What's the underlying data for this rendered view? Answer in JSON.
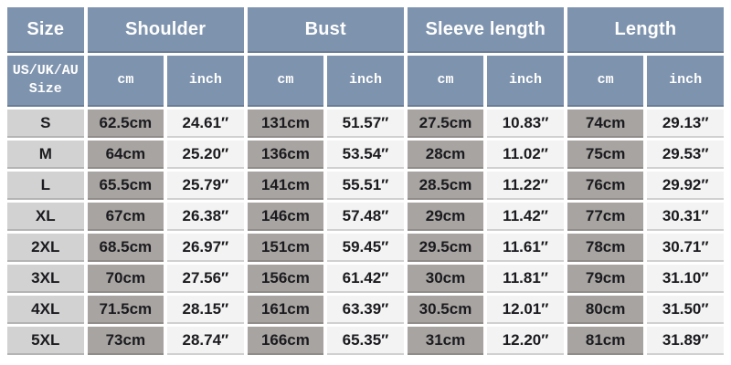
{
  "colors": {
    "header_bg": "#7e93ae",
    "header_text": "#ffffff",
    "size_column_bg": "#d2d2d2",
    "cm_column_bg": "#a8a4a1",
    "inch_column_bg": "#f3f3f3",
    "data_text": "#1b1b1f",
    "grid_gap": "#ffffff"
  },
  "chart_data": {
    "type": "table",
    "title": "",
    "header_groups": [
      {
        "label": "Size",
        "span": 1
      },
      {
        "label": "Shoulder",
        "span": 2
      },
      {
        "label": "Bust",
        "span": 2
      },
      {
        "label": "Sleeve length",
        "span": 2
      },
      {
        "label": "Length",
        "span": 2
      }
    ],
    "subheader": {
      "size_line1": "US/UK/AU",
      "size_line2": "Size",
      "cm_label": "cm",
      "inch_label": "inch"
    },
    "rows": [
      {
        "size": "S",
        "shoulder_cm": "62.5cm",
        "shoulder_in": "24.61″",
        "bust_cm": "131cm",
        "bust_in": "51.57″",
        "sleeve_cm": "27.5cm",
        "sleeve_in": "10.83″",
        "length_cm": "74cm",
        "length_in": "29.13″"
      },
      {
        "size": "M",
        "shoulder_cm": "64cm",
        "shoulder_in": "25.20″",
        "bust_cm": "136cm",
        "bust_in": "53.54″",
        "sleeve_cm": "28cm",
        "sleeve_in": "11.02″",
        "length_cm": "75cm",
        "length_in": "29.53″"
      },
      {
        "size": "L",
        "shoulder_cm": "65.5cm",
        "shoulder_in": "25.79″",
        "bust_cm": "141cm",
        "bust_in": "55.51″",
        "sleeve_cm": "28.5cm",
        "sleeve_in": "11.22″",
        "length_cm": "76cm",
        "length_in": "29.92″"
      },
      {
        "size": "XL",
        "shoulder_cm": "67cm",
        "shoulder_in": "26.38″",
        "bust_cm": "146cm",
        "bust_in": "57.48″",
        "sleeve_cm": "29cm",
        "sleeve_in": "11.42″",
        "length_cm": "77cm",
        "length_in": "30.31″"
      },
      {
        "size": "2XL",
        "shoulder_cm": "68.5cm",
        "shoulder_in": "26.97″",
        "bust_cm": "151cm",
        "bust_in": "59.45″",
        "sleeve_cm": "29.5cm",
        "sleeve_in": "11.61″",
        "length_cm": "78cm",
        "length_in": "30.71″"
      },
      {
        "size": "3XL",
        "shoulder_cm": "70cm",
        "shoulder_in": "27.56″",
        "bust_cm": "156cm",
        "bust_in": "61.42″",
        "sleeve_cm": "30cm",
        "sleeve_in": "11.81″",
        "length_cm": "79cm",
        "length_in": "31.10″"
      },
      {
        "size": "4XL",
        "shoulder_cm": "71.5cm",
        "shoulder_in": "28.15″",
        "bust_cm": "161cm",
        "bust_in": "63.39″",
        "sleeve_cm": "30.5cm",
        "sleeve_in": "12.01″",
        "length_cm": "80cm",
        "length_in": "31.50″"
      },
      {
        "size": "5XL",
        "shoulder_cm": "73cm",
        "shoulder_in": "28.74″",
        "bust_cm": "166cm",
        "bust_in": "65.35″",
        "sleeve_cm": "31cm",
        "sleeve_in": "12.20″",
        "length_cm": "81cm",
        "length_in": "31.89″"
      }
    ]
  }
}
